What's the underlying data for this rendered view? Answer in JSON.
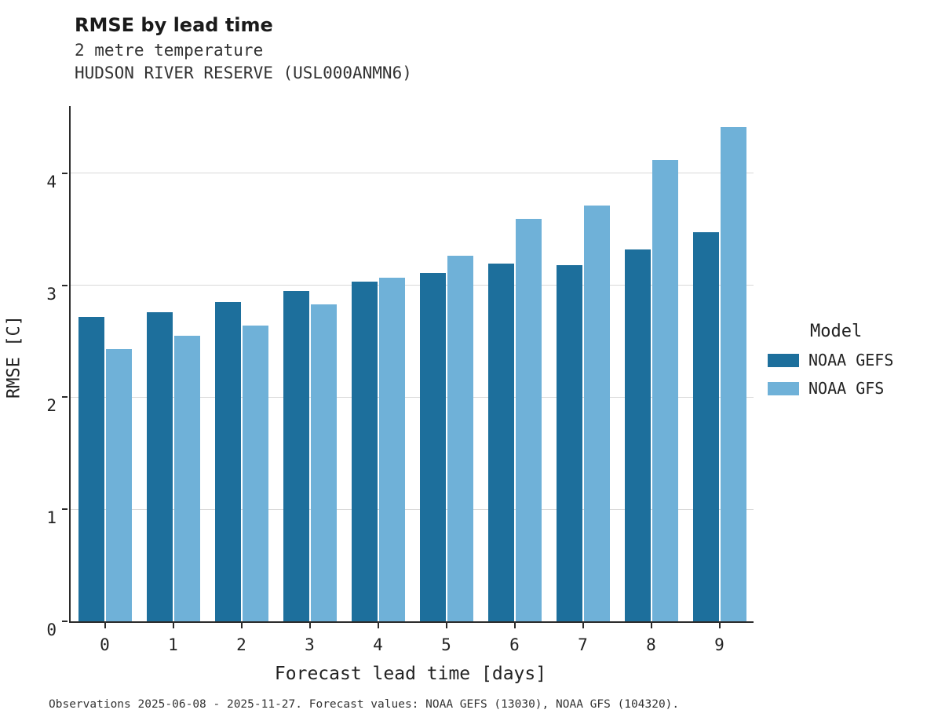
{
  "header": {
    "title": "RMSE by lead time",
    "subtitle1": "2 metre temperature",
    "subtitle2": "HUDSON RIVER RESERVE (USL000ANMN6)"
  },
  "footer": {
    "caption": "Observations 2025-06-08 - 2025-11-27. Forecast values: NOAA GEFS (13030), NOAA GFS (104320)."
  },
  "legend": {
    "title": "Model",
    "entries": [
      {
        "label": "NOAA GEFS",
        "color": "#1d6f9c"
      },
      {
        "label": "NOAA GFS",
        "color": "#6fb1d8"
      }
    ]
  },
  "colors": {
    "gefs": "#1d6f9c",
    "gfs": "#6fb1d8",
    "grid": "#d9d9d9",
    "axis": "#2b2b2b"
  },
  "chart_data": {
    "type": "bar",
    "title": "RMSE by lead time",
    "subtitle": "2 metre temperature — HUDSON RIVER RESERVE (USL000ANMN6)",
    "xlabel": "Forecast lead time [days]",
    "ylabel": "RMSE [C]",
    "categories": [
      "0",
      "1",
      "2",
      "3",
      "4",
      "5",
      "6",
      "7",
      "8",
      "9"
    ],
    "series": [
      {
        "name": "NOAA GEFS",
        "color": "#1d6f9c",
        "values": [
          2.72,
          2.76,
          2.85,
          2.95,
          3.03,
          3.11,
          3.19,
          3.18,
          3.32,
          3.47
        ]
      },
      {
        "name": "NOAA GFS",
        "color": "#6fb1d8",
        "values": [
          2.43,
          2.55,
          2.64,
          2.83,
          3.07,
          3.26,
          3.59,
          3.71,
          4.12,
          4.41
        ]
      }
    ],
    "ylim": [
      0,
      4.6
    ],
    "yticks": [
      0,
      1,
      2,
      3,
      4
    ],
    "grid": true,
    "legend_title": "Model",
    "legend_position": "right"
  }
}
